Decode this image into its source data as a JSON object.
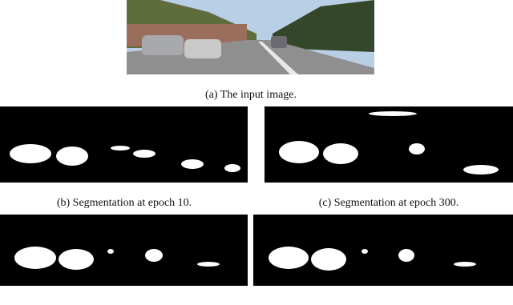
{
  "figure": {
    "panels": [
      {
        "caption": "(a) The input image."
      },
      {
        "caption": "(b) Segmentation at epoch 10."
      },
      {
        "caption": "(c) Segmentation at epoch 300."
      }
    ]
  }
}
